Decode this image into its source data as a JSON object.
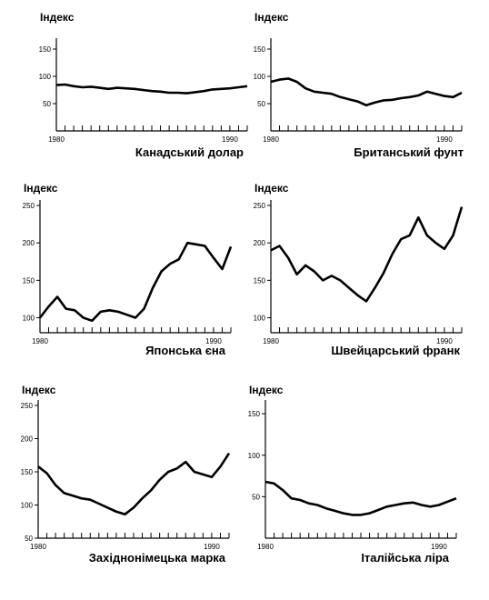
{
  "chart_data": [
    {
      "type": "line",
      "ylabel": "Індекс",
      "caption": "Канадський долар",
      "xlim": [
        1980,
        1991
      ],
      "ylim": [
        0,
        160
      ],
      "yticks": [
        50,
        100,
        150
      ],
      "xticklabels": [
        "1980",
        "1990"
      ],
      "color": "#000000",
      "x": [
        1980,
        1980.5,
        1981,
        1981.5,
        1982,
        1982.5,
        1983,
        1983.5,
        1984,
        1984.5,
        1985,
        1985.5,
        1986,
        1986.5,
        1987,
        1987.5,
        1988,
        1988.5,
        1989,
        1989.5,
        1990,
        1990.5,
        1991
      ],
      "y": [
        84,
        85,
        82,
        80,
        81,
        79,
        77,
        79,
        78,
        77,
        75,
        73,
        72,
        70,
        70,
        69,
        71,
        73,
        76,
        77,
        78,
        80,
        82
      ]
    },
    {
      "type": "line",
      "ylabel": "Індекс",
      "caption": "Британський фунт",
      "xlim": [
        1980,
        1991
      ],
      "ylim": [
        0,
        160
      ],
      "yticks": [
        50,
        100,
        150
      ],
      "xticklabels": [
        "1980",
        "1990"
      ],
      "color": "#000000",
      "x": [
        1980,
        1980.5,
        1981,
        1981.5,
        1982,
        1982.5,
        1983,
        1983.5,
        1984,
        1984.5,
        1985,
        1985.5,
        1986,
        1986.5,
        1987,
        1987.5,
        1988,
        1988.5,
        1989,
        1989.5,
        1990,
        1990.5,
        1991
      ],
      "y": [
        90,
        94,
        96,
        90,
        78,
        72,
        70,
        68,
        62,
        58,
        54,
        47,
        52,
        56,
        57,
        60,
        62,
        65,
        72,
        68,
        64,
        62,
        70
      ]
    },
    {
      "type": "line",
      "ylabel": "Індекс",
      "caption": "Японська єна",
      "xlim": [
        1980,
        1991
      ],
      "ylim": [
        80,
        250
      ],
      "yticks": [
        100,
        150,
        200,
        250
      ],
      "xticklabels": [
        "1980",
        "1990"
      ],
      "color": "#000000",
      "x": [
        1980,
        1980.5,
        1981,
        1981.5,
        1982,
        1982.5,
        1983,
        1983.5,
        1984,
        1984.5,
        1985,
        1985.5,
        1986,
        1986.5,
        1987,
        1987.5,
        1988,
        1988.5,
        1989,
        1989.5,
        1990,
        1990.5,
        1991
      ],
      "y": [
        100,
        115,
        128,
        112,
        110,
        100,
        96,
        108,
        110,
        108,
        104,
        100,
        112,
        140,
        162,
        172,
        178,
        200,
        198,
        196,
        180,
        165,
        195
      ]
    },
    {
      "type": "line",
      "ylabel": "Індекс",
      "caption": "Швейцарський франк",
      "xlim": [
        1980,
        1991
      ],
      "ylim": [
        80,
        250
      ],
      "yticks": [
        100,
        150,
        200,
        250
      ],
      "xticklabels": [
        "1980",
        "1990"
      ],
      "color": "#000000",
      "x": [
        1980,
        1980.5,
        1981,
        1981.5,
        1982,
        1982.5,
        1983,
        1983.5,
        1984,
        1984.5,
        1985,
        1985.5,
        1986,
        1986.5,
        1987,
        1987.5,
        1988,
        1988.5,
        1989,
        1989.5,
        1990,
        1990.5,
        1991
      ],
      "y": [
        190,
        196,
        180,
        158,
        170,
        162,
        150,
        156,
        150,
        140,
        130,
        122,
        140,
        160,
        185,
        205,
        210,
        234,
        210,
        200,
        192,
        210,
        248
      ]
    },
    {
      "type": "line",
      "ylabel": "Індекс",
      "caption": "Західнонімецька марка",
      "xlim": [
        1980,
        1991
      ],
      "ylim": [
        50,
        250
      ],
      "yticks": [
        50,
        100,
        150,
        200,
        250
      ],
      "xticklabels": [
        "1980",
        "1990"
      ],
      "color": "#000000",
      "x": [
        1980,
        1980.5,
        1981,
        1981.5,
        1982,
        1982.5,
        1983,
        1983.5,
        1984,
        1984.5,
        1985,
        1985.5,
        1986,
        1986.5,
        1987,
        1987.5,
        1988,
        1988.5,
        1989,
        1989.5,
        1990,
        1990.5,
        1991
      ],
      "y": [
        158,
        148,
        130,
        118,
        114,
        110,
        108,
        102,
        96,
        90,
        86,
        96,
        110,
        122,
        138,
        150,
        155,
        165,
        150,
        146,
        142,
        158,
        178
      ]
    },
    {
      "type": "line",
      "ylabel": "Індекс",
      "caption": "Італійська ліра",
      "xlim": [
        1980,
        1991
      ],
      "ylim": [
        0,
        160
      ],
      "yticks": [
        50,
        100,
        150
      ],
      "xticklabels": [
        "1980",
        "1990"
      ],
      "color": "#000000",
      "x": [
        1980,
        1980.5,
        1981,
        1981.5,
        1982,
        1982.5,
        1983,
        1983.5,
        1984,
        1984.5,
        1985,
        1985.5,
        1986,
        1986.5,
        1987,
        1987.5,
        1988,
        1988.5,
        1989,
        1989.5,
        1990,
        1990.5,
        1991
      ],
      "y": [
        68,
        66,
        58,
        48,
        46,
        42,
        40,
        36,
        33,
        30,
        28,
        28,
        30,
        34,
        38,
        40,
        42,
        43,
        40,
        38,
        40,
        44,
        48
      ]
    }
  ]
}
